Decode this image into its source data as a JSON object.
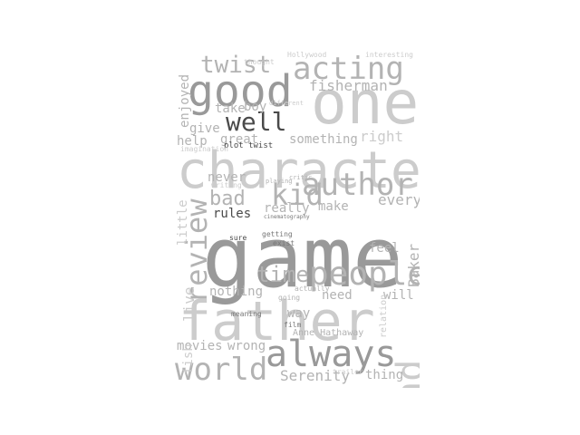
{
  "image": {
    "background_color": "#ffffff",
    "word_cloud": {
      "palette": {
        "dark": "#4a4a4a",
        "mid_dark": "#777777",
        "mid": "#999999",
        "mid_light": "#b3b3b3",
        "light": "#cccccc",
        "faint": "#dedede"
      },
      "words": [
        {
          "text": "game"
        },
        {
          "text": "father"
        },
        {
          "text": "character"
        },
        {
          "text": "one"
        },
        {
          "text": "always"
        },
        {
          "text": "good"
        },
        {
          "text": "people"
        },
        {
          "text": "acting"
        },
        {
          "text": "author"
        },
        {
          "text": "world"
        },
        {
          "text": "review"
        },
        {
          "text": "twist"
        },
        {
          "text": "well"
        },
        {
          "text": "kid"
        },
        {
          "text": "bad"
        },
        {
          "text": "mind"
        },
        {
          "text": "time"
        },
        {
          "text": "fisherman"
        },
        {
          "text": "something"
        },
        {
          "text": "right"
        },
        {
          "text": "movies"
        },
        {
          "text": "Serenity"
        },
        {
          "text": "take"
        },
        {
          "text": "great"
        },
        {
          "text": "never"
        },
        {
          "text": "make"
        },
        {
          "text": "every"
        },
        {
          "text": "really"
        },
        {
          "text": "rules"
        },
        {
          "text": "nothing"
        },
        {
          "text": "need"
        },
        {
          "text": "will"
        },
        {
          "text": "wrong"
        },
        {
          "text": "way"
        },
        {
          "text": "thing"
        },
        {
          "text": "feel"
        },
        {
          "text": "Baker"
        },
        {
          "text": "live"
        },
        {
          "text": "little"
        },
        {
          "text": "fish"
        },
        {
          "text": "give"
        },
        {
          "text": "help"
        },
        {
          "text": "enjoyed"
        },
        {
          "text": "boy"
        },
        {
          "text": "plot twist"
        },
        {
          "text": "Anne Hathaway"
        },
        {
          "text": "relation"
        },
        {
          "text": "getting"
        },
        {
          "text": "sure"
        },
        {
          "text": "exist"
        },
        {
          "text": "film"
        },
        {
          "text": "meaning"
        },
        {
          "text": "going"
        },
        {
          "text": "actually"
        },
        {
          "text": "thought"
        },
        {
          "text": "Hollywood"
        },
        {
          "text": "interesting"
        },
        {
          "text": "cinematography"
        },
        {
          "text": "writing"
        },
        {
          "text": "imagination"
        },
        {
          "text": "different"
        },
        {
          "text": "trailer"
        },
        {
          "text": "critic"
        },
        {
          "text": "playing"
        }
      ]
    }
  }
}
